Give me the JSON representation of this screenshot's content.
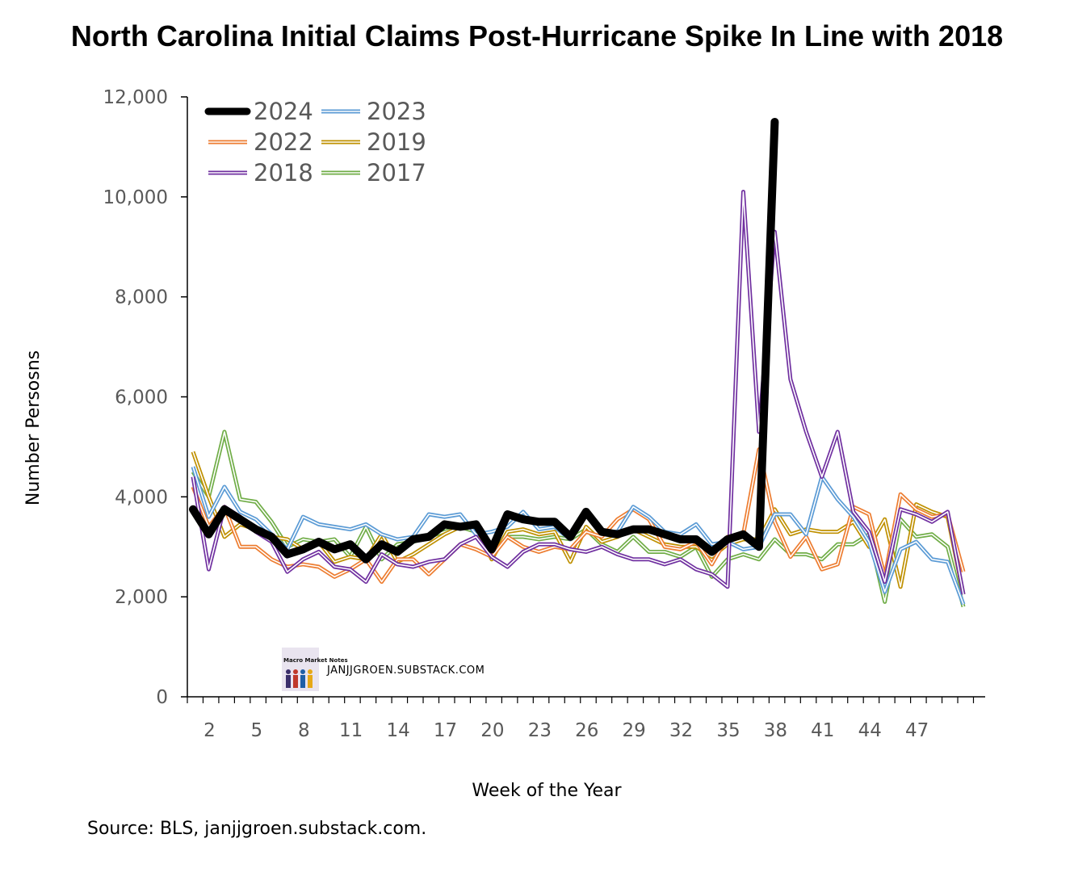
{
  "chart_data": {
    "type": "line",
    "title": "North Carolina Initial Claims Post-Hurricane Spike In Line with 2018",
    "xlabel": "Week of the Year",
    "ylabel": "Number Persosns",
    "source": "Source: BLS, janjjgroen.substack.com.",
    "watermark": "JANJJGROEN.SUBSTACK.COM",
    "watermark_logo_text": "Macro Market Notes",
    "ylim": [
      0,
      12000
    ],
    "yticks": [
      0,
      2000,
      4000,
      6000,
      8000,
      10000,
      12000
    ],
    "ytick_labels": [
      "0",
      "2,000",
      "4,000",
      "6,000",
      "8,000",
      "10,000",
      "12,000"
    ],
    "xlim": [
      0,
      50
    ],
    "xticks": [
      2,
      5,
      8,
      11,
      14,
      17,
      20,
      23,
      26,
      29,
      32,
      35,
      38,
      41,
      44,
      47
    ],
    "grid": false,
    "legend_position": "top-left",
    "series": [
      {
        "name": "2017",
        "color": "#70ad47",
        "style": "double",
        "values": [
          4500,
          4000,
          5300,
          3950,
          3900,
          3500,
          3000,
          3150,
          3100,
          3150,
          2800,
          3400,
          2750,
          3050,
          3100,
          3200,
          3300,
          3400,
          3300,
          2900,
          3200,
          3200,
          3150,
          3200,
          3150,
          3350,
          3050,
          2900,
          3200,
          2900,
          2900,
          2800,
          3000,
          2400,
          2750,
          2850,
          2750,
          3150,
          2850,
          2850,
          2750,
          3050,
          3050,
          3250,
          1900,
          3550,
          3200,
          3250,
          3000,
          1800
        ]
      },
      {
        "name": "2019",
        "color": "#bf9000",
        "style": "double",
        "values": [
          4900,
          4000,
          3200,
          3450,
          3350,
          3200,
          3150,
          2950,
          3100,
          2700,
          2800,
          2750,
          3250,
          2700,
          2850,
          3050,
          3250,
          3400,
          3400,
          2750,
          3300,
          3350,
          3250,
          3300,
          2700,
          3400,
          3100,
          3200,
          3350,
          3200,
          3050,
          3000,
          3000,
          2800,
          3050,
          3150,
          3150,
          3750,
          3250,
          3350,
          3300,
          3300,
          3500,
          3000,
          3550,
          2200,
          3850,
          3700,
          3600,
          2050
        ]
      },
      {
        "name": "2022",
        "color": "#ed7d31",
        "style": "double",
        "values": [
          4200,
          3400,
          3800,
          3000,
          3000,
          2750,
          2600,
          2650,
          2600,
          2400,
          2550,
          2750,
          2300,
          2750,
          2750,
          2450,
          2750,
          3050,
          2950,
          2800,
          3200,
          3000,
          2900,
          3000,
          2950,
          3300,
          3200,
          3550,
          3750,
          3550,
          3000,
          2950,
          3100,
          2650,
          3200,
          3250,
          4950,
          3500,
          2800,
          3200,
          2550,
          2650,
          3800,
          3650,
          2400,
          4050,
          3750,
          3600,
          3650,
          2500
        ]
      },
      {
        "name": "2023",
        "color": "#5b9bd5",
        "style": "double",
        "values": [
          4600,
          3600,
          4200,
          3700,
          3550,
          3250,
          2950,
          3600,
          3450,
          3400,
          3350,
          3450,
          3250,
          3150,
          3200,
          3650,
          3600,
          3650,
          3250,
          3300,
          3400,
          3700,
          3350,
          3400,
          3150,
          3700,
          3300,
          3300,
          3800,
          3600,
          3300,
          3250,
          3450,
          3050,
          3100,
          2950,
          3000,
          3650,
          3650,
          3250,
          4400,
          3950,
          3600,
          3100,
          2100,
          2950,
          3100,
          2750,
          2700,
          1850
        ]
      },
      {
        "name": "2018",
        "color": "#7030a0",
        "style": "double",
        "values": [
          4400,
          2550,
          3800,
          3600,
          3300,
          3100,
          2500,
          2750,
          2900,
          2600,
          2550,
          2300,
          2850,
          2650,
          2600,
          2700,
          2750,
          3050,
          3200,
          2800,
          2600,
          2900,
          3050,
          3050,
          2950,
          2900,
          3000,
          2850,
          2750,
          2750,
          2650,
          2750,
          2550,
          2450,
          2200,
          10100,
          5300,
          9300,
          6350,
          5300,
          4400,
          5300,
          3700,
          3300,
          2300,
          3750,
          3650,
          3500,
          3700,
          2050
        ]
      },
      {
        "name": "2024",
        "color": "#000000",
        "style": "thick",
        "values": [
          3750,
          3250,
          3750,
          3550,
          3350,
          3200,
          2850,
          2950,
          3100,
          2950,
          3050,
          2750,
          3050,
          2900,
          3150,
          3200,
          3450,
          3400,
          3450,
          2950,
          3650,
          3550,
          3500,
          3500,
          3200,
          3700,
          3300,
          3250,
          3350,
          3350,
          3250,
          3150,
          3150,
          2900,
          3150,
          3250,
          3000,
          11500
        ]
      }
    ],
    "legend_order": [
      "2024",
      "2023",
      "2022",
      "2019",
      "2018",
      "2017"
    ]
  }
}
